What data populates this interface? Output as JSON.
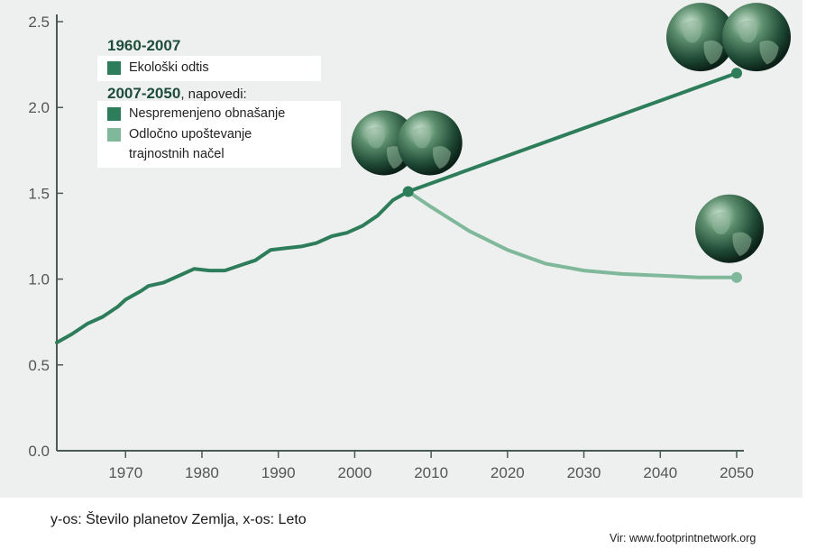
{
  "colors": {
    "background": "#eef0ef",
    "history": "#2e7d5a",
    "business_as_usual": "#2e7d5a",
    "sustainable": "#7fb89a",
    "axis": "#4a5a55"
  },
  "legend": {
    "history_period": "1960-2007",
    "history_label": "Ekološki odtis",
    "forecast_period": "2007-2050",
    "forecast_suffix": ", napovedi:",
    "bau_label": "Nespremenjeno obnašanje",
    "sustainable_label_line1": "Odločno upoštevanje",
    "sustainable_label_line2": "trajnostnih načel"
  },
  "caption": "y-os: Število planetov Zemlja, x-os: Leto",
  "source": "Vir: www.footprintnetwork.org",
  "chart_data": {
    "type": "line",
    "xlim": [
      1961,
      2050
    ],
    "ylim": [
      0,
      2.5
    ],
    "x_ticks": [
      "1970",
      "1980",
      "1990",
      "2000",
      "2010",
      "2020",
      "2030",
      "2040",
      "2050"
    ],
    "y_ticks": [
      "0.0",
      "0.5",
      "1.0",
      "1.5",
      "2.0",
      "2.5"
    ],
    "grid": false,
    "legend_position": "top-left",
    "series": [
      {
        "name": "Ekološki odtis",
        "x": [
          1961,
          1963,
          1965,
          1967,
          1969,
          1970,
          1972,
          1973,
          1975,
          1977,
          1979,
          1981,
          1983,
          1985,
          1987,
          1989,
          1991,
          1993,
          1995,
          1997,
          1999,
          2001,
          2003,
          2005,
          2007
        ],
        "y": [
          0.63,
          0.68,
          0.74,
          0.78,
          0.84,
          0.88,
          0.93,
          0.96,
          0.98,
          1.02,
          1.06,
          1.05,
          1.05,
          1.08,
          1.11,
          1.17,
          1.18,
          1.19,
          1.21,
          1.25,
          1.27,
          1.31,
          1.37,
          1.46,
          1.51
        ]
      },
      {
        "name": "Nespremenjeno obnašanje",
        "x": [
          2007,
          2050
        ],
        "y": [
          1.51,
          2.2
        ]
      },
      {
        "name": "Odločno upoštevanje trajnostnih načel",
        "x": [
          2007,
          2010,
          2015,
          2020,
          2025,
          2030,
          2035,
          2040,
          2045,
          2050
        ],
        "y": [
          1.51,
          1.42,
          1.28,
          1.17,
          1.09,
          1.05,
          1.03,
          1.02,
          1.01,
          1.01
        ]
      }
    ],
    "markers": [
      {
        "x": 2007,
        "y": 1.51
      },
      {
        "x": 2050,
        "y": 2.2
      },
      {
        "x": 2050,
        "y": 1.01
      }
    ],
    "globe_annotations": [
      {
        "count": 2,
        "x": 2007,
        "y": 1.51
      },
      {
        "count": 2,
        "x": 2050,
        "y": 2.2
      },
      {
        "count": 1,
        "x": 2050,
        "y": 1.01
      }
    ]
  }
}
